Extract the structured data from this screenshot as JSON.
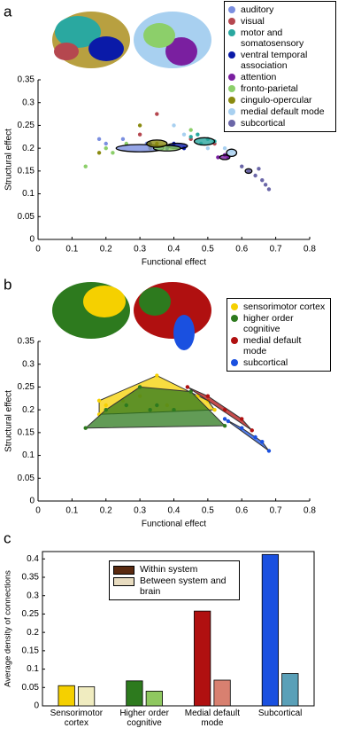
{
  "chart_data": [
    {
      "type": "scatter",
      "panel": "a",
      "xlabel": "Functional effect",
      "ylabel": "Structural effect",
      "xlim": [
        0,
        0.8
      ],
      "xticks": [
        0,
        0.1,
        0.2,
        0.3,
        0.4,
        0.5,
        0.6,
        0.7,
        0.8
      ],
      "ylim": [
        0,
        0.35
      ],
      "yticks": [
        0,
        0.05,
        0.1,
        0.15,
        0.2,
        0.25,
        0.3,
        0.35
      ],
      "series": [
        {
          "name": "auditory",
          "color": "#7b8fe0",
          "x": [
            0.18,
            0.2,
            0.25,
            0.32
          ],
          "values": [
            0.22,
            0.21,
            0.22,
            0.21
          ],
          "ellipse": [
            0.3,
            0.2,
            0.07,
            0.008
          ]
        },
        {
          "name": "visual",
          "color": "#b5474f",
          "x": [
            0.35,
            0.3,
            0.45,
            0.52
          ],
          "values": [
            0.275,
            0.23,
            0.22,
            0.21
          ]
        },
        {
          "name": "motor and somatosensory",
          "color": "#2aa8a0",
          "x": [
            0.47,
            0.5,
            0.52,
            0.48,
            0.45
          ],
          "values": [
            0.23,
            0.22,
            0.215,
            0.21,
            0.225
          ],
          "ellipse": [
            0.49,
            0.215,
            0.03,
            0.008
          ]
        },
        {
          "name": "ventral temporal association",
          "color": "#0a1aa8",
          "x": [
            0.38,
            0.4,
            0.43,
            0.33
          ],
          "values": [
            0.2,
            0.21,
            0.2,
            0.21
          ],
          "ellipse": [
            0.41,
            0.205,
            0.03,
            0.006
          ]
        },
        {
          "name": "attention",
          "color": "#7a1fa0",
          "x": [
            0.53,
            0.55,
            0.56
          ],
          "values": [
            0.18,
            0.185,
            0.18
          ],
          "ellipse": [
            0.55,
            0.18,
            0.015,
            0.005
          ]
        },
        {
          "name": "fronto-parietal",
          "color": "#8ccf6a",
          "x": [
            0.14,
            0.2,
            0.22,
            0.26,
            0.45
          ],
          "values": [
            0.16,
            0.2,
            0.19,
            0.21,
            0.24
          ],
          "ellipse": [
            0.38,
            0.2,
            0.04,
            0.006
          ]
        },
        {
          "name": "cingulo-opercular",
          "color": "#8a8a10",
          "x": [
            0.18,
            0.3,
            0.35,
            0.36,
            0.33
          ],
          "values": [
            0.19,
            0.25,
            0.21,
            0.2,
            0.2
          ],
          "ellipse": [
            0.35,
            0.21,
            0.03,
            0.008
          ]
        },
        {
          "name": "medial default mode",
          "color": "#a8d0f0",
          "x": [
            0.4,
            0.43,
            0.5,
            0.55,
            0.57
          ],
          "values": [
            0.25,
            0.23,
            0.2,
            0.2,
            0.195
          ],
          "ellipse": [
            0.57,
            0.19,
            0.015,
            0.008
          ]
        },
        {
          "name": "subcortical",
          "color": "#6b67a8",
          "x": [
            0.6,
            0.62,
            0.64,
            0.66,
            0.67,
            0.68,
            0.65
          ],
          "values": [
            0.16,
            0.15,
            0.14,
            0.13,
            0.12,
            0.11,
            0.155
          ],
          "ellipse": [
            0.62,
            0.15,
            0.01,
            0.005
          ]
        }
      ]
    },
    {
      "type": "scatter",
      "panel": "b",
      "xlabel": "Functional effect",
      "ylabel": "Structural effect",
      "hull": true,
      "xlim": [
        0,
        0.8
      ],
      "xticks": [
        0,
        0.1,
        0.2,
        0.3,
        0.4,
        0.5,
        0.6,
        0.7,
        0.8
      ],
      "ylim": [
        0,
        0.35
      ],
      "yticks": [
        0,
        0.05,
        0.1,
        0.15,
        0.2,
        0.25,
        0.3,
        0.35
      ],
      "series": [
        {
          "name": "sensorimotor cortex",
          "color": "#f5d000",
          "x": [
            0.18,
            0.2,
            0.25,
            0.35,
            0.3,
            0.47,
            0.5,
            0.52,
            0.18,
            0.38
          ],
          "values": [
            0.22,
            0.21,
            0.22,
            0.275,
            0.23,
            0.23,
            0.22,
            0.2,
            0.19,
            0.21
          ]
        },
        {
          "name": "higher order cognitive",
          "color": "#2d7a1e",
          "x": [
            0.14,
            0.2,
            0.26,
            0.3,
            0.35,
            0.45,
            0.55,
            0.4,
            0.33
          ],
          "values": [
            0.16,
            0.2,
            0.21,
            0.25,
            0.21,
            0.24,
            0.165,
            0.2,
            0.2
          ]
        },
        {
          "name": "medial default mode",
          "color": "#b01010",
          "x": [
            0.44,
            0.5,
            0.55,
            0.6,
            0.63
          ],
          "values": [
            0.25,
            0.23,
            0.2,
            0.18,
            0.155
          ]
        },
        {
          "name": "subcortical",
          "color": "#1a50e0",
          "x": [
            0.55,
            0.6,
            0.64,
            0.66,
            0.68,
            0.56
          ],
          "values": [
            0.18,
            0.16,
            0.14,
            0.13,
            0.11,
            0.175
          ]
        }
      ]
    },
    {
      "type": "bar",
      "panel": "c",
      "ylabel": "Average density of connections",
      "categories": [
        "Sensorimotor cortex",
        "Higher order cognitive",
        "Medial default mode",
        "Subcortical"
      ],
      "ylim": [
        0,
        0.42
      ],
      "yticks": [
        0,
        0.05,
        0.1,
        0.15,
        0.2,
        0.25,
        0.3,
        0.35,
        0.4
      ],
      "series": [
        {
          "name": "Within system",
          "color": "#5a2a10",
          "colors": [
            "#f5d000",
            "#2d7a1e",
            "#b01010",
            "#1a50e0"
          ],
          "values": [
            0.055,
            0.068,
            0.258,
            0.412
          ]
        },
        {
          "name": "Between system and brain",
          "color": "#e8dcc0",
          "colors": [
            "#f0ecc0",
            "#8fc860",
            "#d88070",
            "#5aa0b8"
          ],
          "values": [
            0.052,
            0.04,
            0.07,
            0.088
          ]
        }
      ]
    }
  ]
}
